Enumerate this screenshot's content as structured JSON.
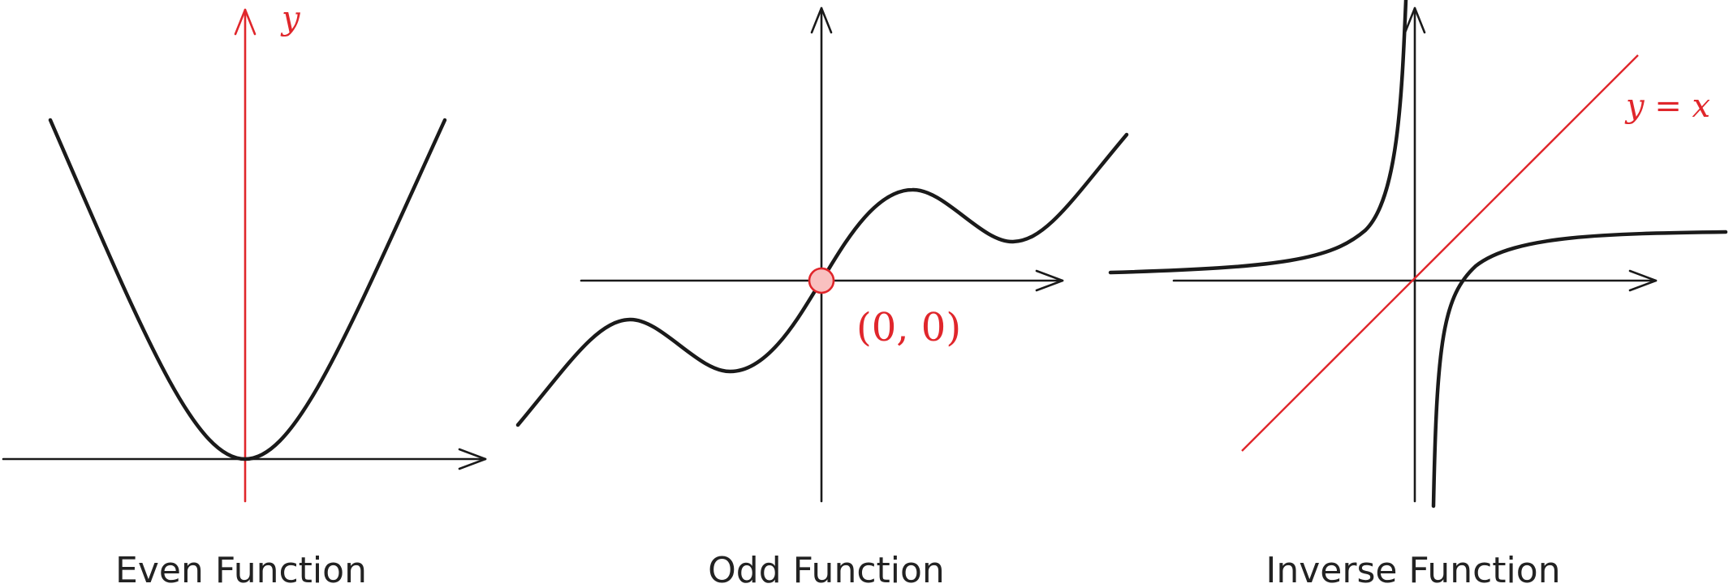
{
  "colors": {
    "curve": "#1a1a1a",
    "axis": "#1a1a1a",
    "highlight": "#e0262b",
    "origin_fill": "#f9c0c0"
  },
  "panels": [
    {
      "id": "even",
      "caption": "Even Function",
      "axis_label_y": "y",
      "function": "x^2",
      "highlighted_axis": "y"
    },
    {
      "id": "odd",
      "caption": "Odd Function",
      "origin_label": "(0, 0)",
      "function": "x + sin(x)",
      "highlighted_point": "origin"
    },
    {
      "id": "inverse",
      "caption": "Inverse Function",
      "line_label": "y = x",
      "function": "reflection across y = x"
    }
  ]
}
